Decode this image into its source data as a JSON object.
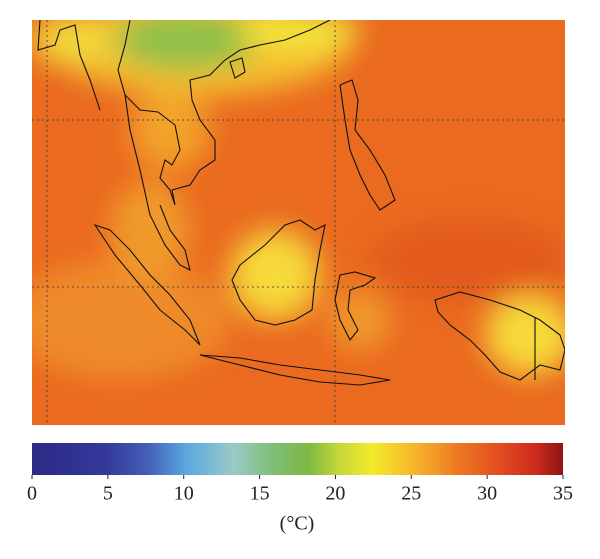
{
  "colorbar": {
    "label": "(°C)",
    "lim": [
      0,
      35
    ],
    "ticks": [
      0,
      5,
      10,
      15,
      20,
      25,
      30,
      35
    ]
  }
}
